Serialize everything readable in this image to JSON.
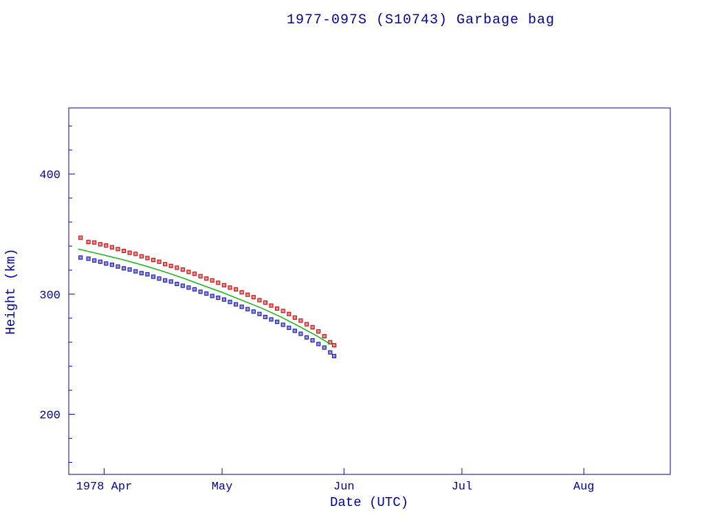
{
  "page": {
    "background": "#ffffff"
  },
  "chart_data": {
    "type": "scatter",
    "title": "1977-097S (S10743) Garbage bag",
    "xlabel": "Date (UTC)",
    "ylabel": "Height (km)",
    "axis_color": "#00009a",
    "grid": false,
    "legend": false,
    "x_unit": "days since 1978-04-01",
    "xlim": [
      -9,
      144
    ],
    "ylim": [
      150,
      455
    ],
    "yticks": [
      {
        "v": 200,
        "label": "200"
      },
      {
        "v": 300,
        "label": "300"
      },
      {
        "v": 400,
        "label": "400"
      }
    ],
    "y_minor_step": 20,
    "xticks": [
      {
        "t": 0,
        "label": "1978 Apr"
      },
      {
        "t": 30,
        "label": "May"
      },
      {
        "t": 61,
        "label": "Jun"
      },
      {
        "t": 91,
        "label": "Jul"
      },
      {
        "t": 122,
        "label": "Aug"
      }
    ],
    "series": [
      {
        "name": "apogee-height",
        "type": "scatter",
        "marker": "square",
        "color": "#cc1111",
        "points": [
          [
            -6,
            347.0
          ],
          [
            -4,
            343.5
          ],
          [
            -2.5,
            343.0
          ],
          [
            -1,
            341.5
          ],
          [
            0.5,
            340.5
          ],
          [
            2,
            339.0
          ],
          [
            3.5,
            337.5
          ],
          [
            5,
            336.0
          ],
          [
            6.5,
            334.5
          ],
          [
            8,
            333.5
          ],
          [
            9.5,
            331.5
          ],
          [
            11,
            330.0
          ],
          [
            12.5,
            328.5
          ],
          [
            14,
            327.0
          ],
          [
            15.5,
            325.0
          ],
          [
            17,
            323.5
          ],
          [
            18.5,
            322.0
          ],
          [
            20,
            320.5
          ],
          [
            21.5,
            318.5
          ],
          [
            23,
            317.0
          ],
          [
            24.5,
            315.0
          ],
          [
            26,
            313.0
          ],
          [
            27.5,
            311.5
          ],
          [
            29,
            309.5
          ],
          [
            30.5,
            307.5
          ],
          [
            32,
            305.5
          ],
          [
            33.5,
            304.0
          ],
          [
            35,
            301.5
          ],
          [
            36.5,
            299.5
          ],
          [
            38,
            297.5
          ],
          [
            39.5,
            295.0
          ],
          [
            41,
            293.0
          ],
          [
            42.5,
            290.5
          ],
          [
            44,
            288.0
          ],
          [
            45.5,
            286.0
          ],
          [
            47,
            283.5
          ],
          [
            48.5,
            280.5
          ],
          [
            50,
            278.0
          ],
          [
            51.5,
            275.0
          ],
          [
            53,
            272.5
          ],
          [
            54.5,
            269.0
          ],
          [
            56,
            265.0
          ],
          [
            57.5,
            260.0
          ],
          [
            58.5,
            257.5
          ]
        ]
      },
      {
        "name": "perigee-height",
        "type": "scatter",
        "marker": "square",
        "color": "#2020b0",
        "points": [
          [
            -6,
            330.5
          ],
          [
            -4,
            329.5
          ],
          [
            -2.5,
            328.0
          ],
          [
            -1,
            327.0
          ],
          [
            0.5,
            325.5
          ],
          [
            2,
            324.5
          ],
          [
            3.5,
            323.0
          ],
          [
            5,
            321.5
          ],
          [
            6.5,
            320.5
          ],
          [
            8,
            319.0
          ],
          [
            9.5,
            317.5
          ],
          [
            11,
            316.5
          ],
          [
            12.5,
            314.5
          ],
          [
            14,
            313.0
          ],
          [
            15.5,
            311.5
          ],
          [
            17,
            310.5
          ],
          [
            18.5,
            308.5
          ],
          [
            20,
            307.0
          ],
          [
            21.5,
            305.5
          ],
          [
            23,
            304.0
          ],
          [
            24.5,
            302.0
          ],
          [
            26,
            300.5
          ],
          [
            27.5,
            298.5
          ],
          [
            29,
            297.0
          ],
          [
            30.5,
            295.5
          ],
          [
            32,
            293.5
          ],
          [
            33.5,
            291.5
          ],
          [
            35,
            289.5
          ],
          [
            36.5,
            287.5
          ],
          [
            38,
            285.5
          ],
          [
            39.5,
            283.5
          ],
          [
            41,
            281.0
          ],
          [
            42.5,
            279.0
          ],
          [
            44,
            277.0
          ],
          [
            45.5,
            274.5
          ],
          [
            47,
            272.0
          ],
          [
            48.5,
            269.5
          ],
          [
            50,
            267.0
          ],
          [
            51.5,
            264.0
          ],
          [
            53,
            261.5
          ],
          [
            54.5,
            258.5
          ],
          [
            56,
            255.5
          ],
          [
            57.5,
            251.5
          ],
          [
            58.5,
            248.5
          ]
        ]
      },
      {
        "name": "mean-height-fit",
        "type": "line",
        "color": "#00b400",
        "points": [
          [
            -6.5,
            337.5
          ],
          [
            0,
            332.5
          ],
          [
            5,
            328.5
          ],
          [
            10,
            324.0
          ],
          [
            15,
            319.0
          ],
          [
            20,
            313.5
          ],
          [
            25,
            307.5
          ],
          [
            30,
            301.5
          ],
          [
            35,
            295.0
          ],
          [
            40,
            288.5
          ],
          [
            45,
            281.0
          ],
          [
            50,
            272.5
          ],
          [
            54,
            265.5
          ],
          [
            57.5,
            258.5
          ]
        ]
      }
    ]
  }
}
